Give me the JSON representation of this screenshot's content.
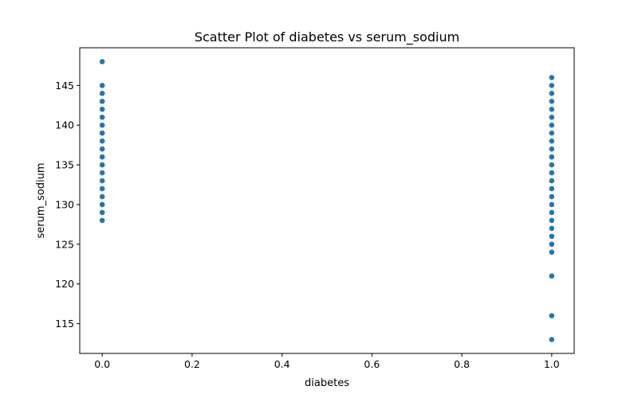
{
  "chart_data": {
    "type": "scatter",
    "title": "Scatter Plot of diabetes vs serum_sodium",
    "xlabel": "diabetes",
    "ylabel": "serum_sodium",
    "xlim": [
      -0.05,
      1.05
    ],
    "ylim": [
      111.25,
      149.75
    ],
    "xticks": [
      0.0,
      0.2,
      0.4,
      0.6,
      0.8,
      1.0
    ],
    "xtick_labels": [
      "0.0",
      "0.2",
      "0.4",
      "0.6",
      "0.8",
      "1.0"
    ],
    "yticks": [
      115,
      120,
      125,
      130,
      135,
      140,
      145
    ],
    "ytick_labels": [
      "115",
      "120",
      "125",
      "130",
      "135",
      "140",
      "145"
    ],
    "grid": false,
    "color": "#1f77b4",
    "series": [
      {
        "x": [
          0,
          0,
          0,
          0,
          0,
          0,
          0,
          0,
          0,
          0,
          0,
          0,
          0,
          0,
          0,
          0,
          0,
          0,
          0,
          1,
          1,
          1,
          1,
          1,
          1,
          1,
          1,
          1,
          1,
          1,
          1,
          1,
          1,
          1,
          1,
          1,
          1,
          1,
          1,
          1,
          1,
          1,
          1,
          1,
          1,
          1
        ],
        "y": [
          148,
          145,
          144,
          143,
          142,
          141,
          140,
          139,
          138,
          137,
          136,
          135,
          134,
          133,
          132,
          131,
          130,
          129,
          128,
          146,
          145,
          144,
          143,
          142,
          141,
          140,
          139,
          138,
          137,
          136,
          135,
          134,
          133,
          132,
          131,
          130,
          129,
          128,
          126,
          125,
          124,
          121,
          116,
          113,
          127,
          127
        ]
      }
    ]
  }
}
